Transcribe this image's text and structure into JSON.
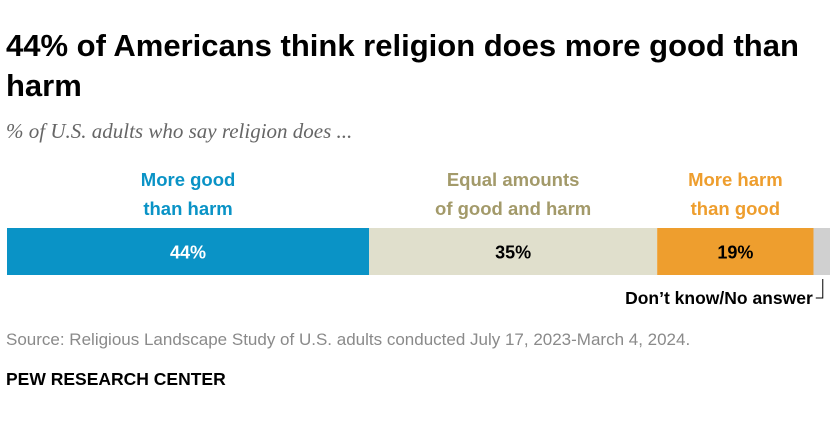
{
  "title": "44% of Americans think religion does more good than harm",
  "subtitle": "% of U.S. adults who say religion does ...",
  "source": "Source: Religious Landscape Study of U.S. adults conducted July 17, 2023-March 4, 2024.",
  "brand": "PEW RESEARCH CENTER",
  "colors": {
    "more_good": "#0a93c6",
    "equal": "#e0dfcc",
    "more_harm": "#ee9e2e",
    "dont_know": "#d0d0d0",
    "equal_label": "#a39a6a"
  },
  "chart_data": {
    "type": "bar",
    "orientation": "horizontal-stacked",
    "series": [
      {
        "name": "More good than harm",
        "label_lines": [
          "More good",
          "than harm"
        ],
        "value": 44,
        "display": "44%",
        "color": "#0a93c6",
        "label_color": "#0a93c6",
        "value_color": "#ffffff"
      },
      {
        "name": "Equal amounts of good and harm",
        "label_lines": [
          "Equal amounts",
          "of good and harm"
        ],
        "value": 35,
        "display": "35%",
        "color": "#e0dfcc",
        "label_color": "#a39a6a",
        "value_color": "#000000"
      },
      {
        "name": "More harm than good",
        "label_lines": [
          "More harm",
          "than good"
        ],
        "value": 19,
        "display": "19%",
        "color": "#ee9e2e",
        "label_color": "#ee9e2e",
        "value_color": "#000000"
      },
      {
        "name": "Don’t know/No answer",
        "label_lines": [],
        "value": 2,
        "display": "",
        "color": "#d0d0d0",
        "label_color": "#000000",
        "value_color": "#000000"
      }
    ],
    "dont_know_label": "Don’t know/No answer",
    "xlim": [
      0,
      100
    ]
  }
}
